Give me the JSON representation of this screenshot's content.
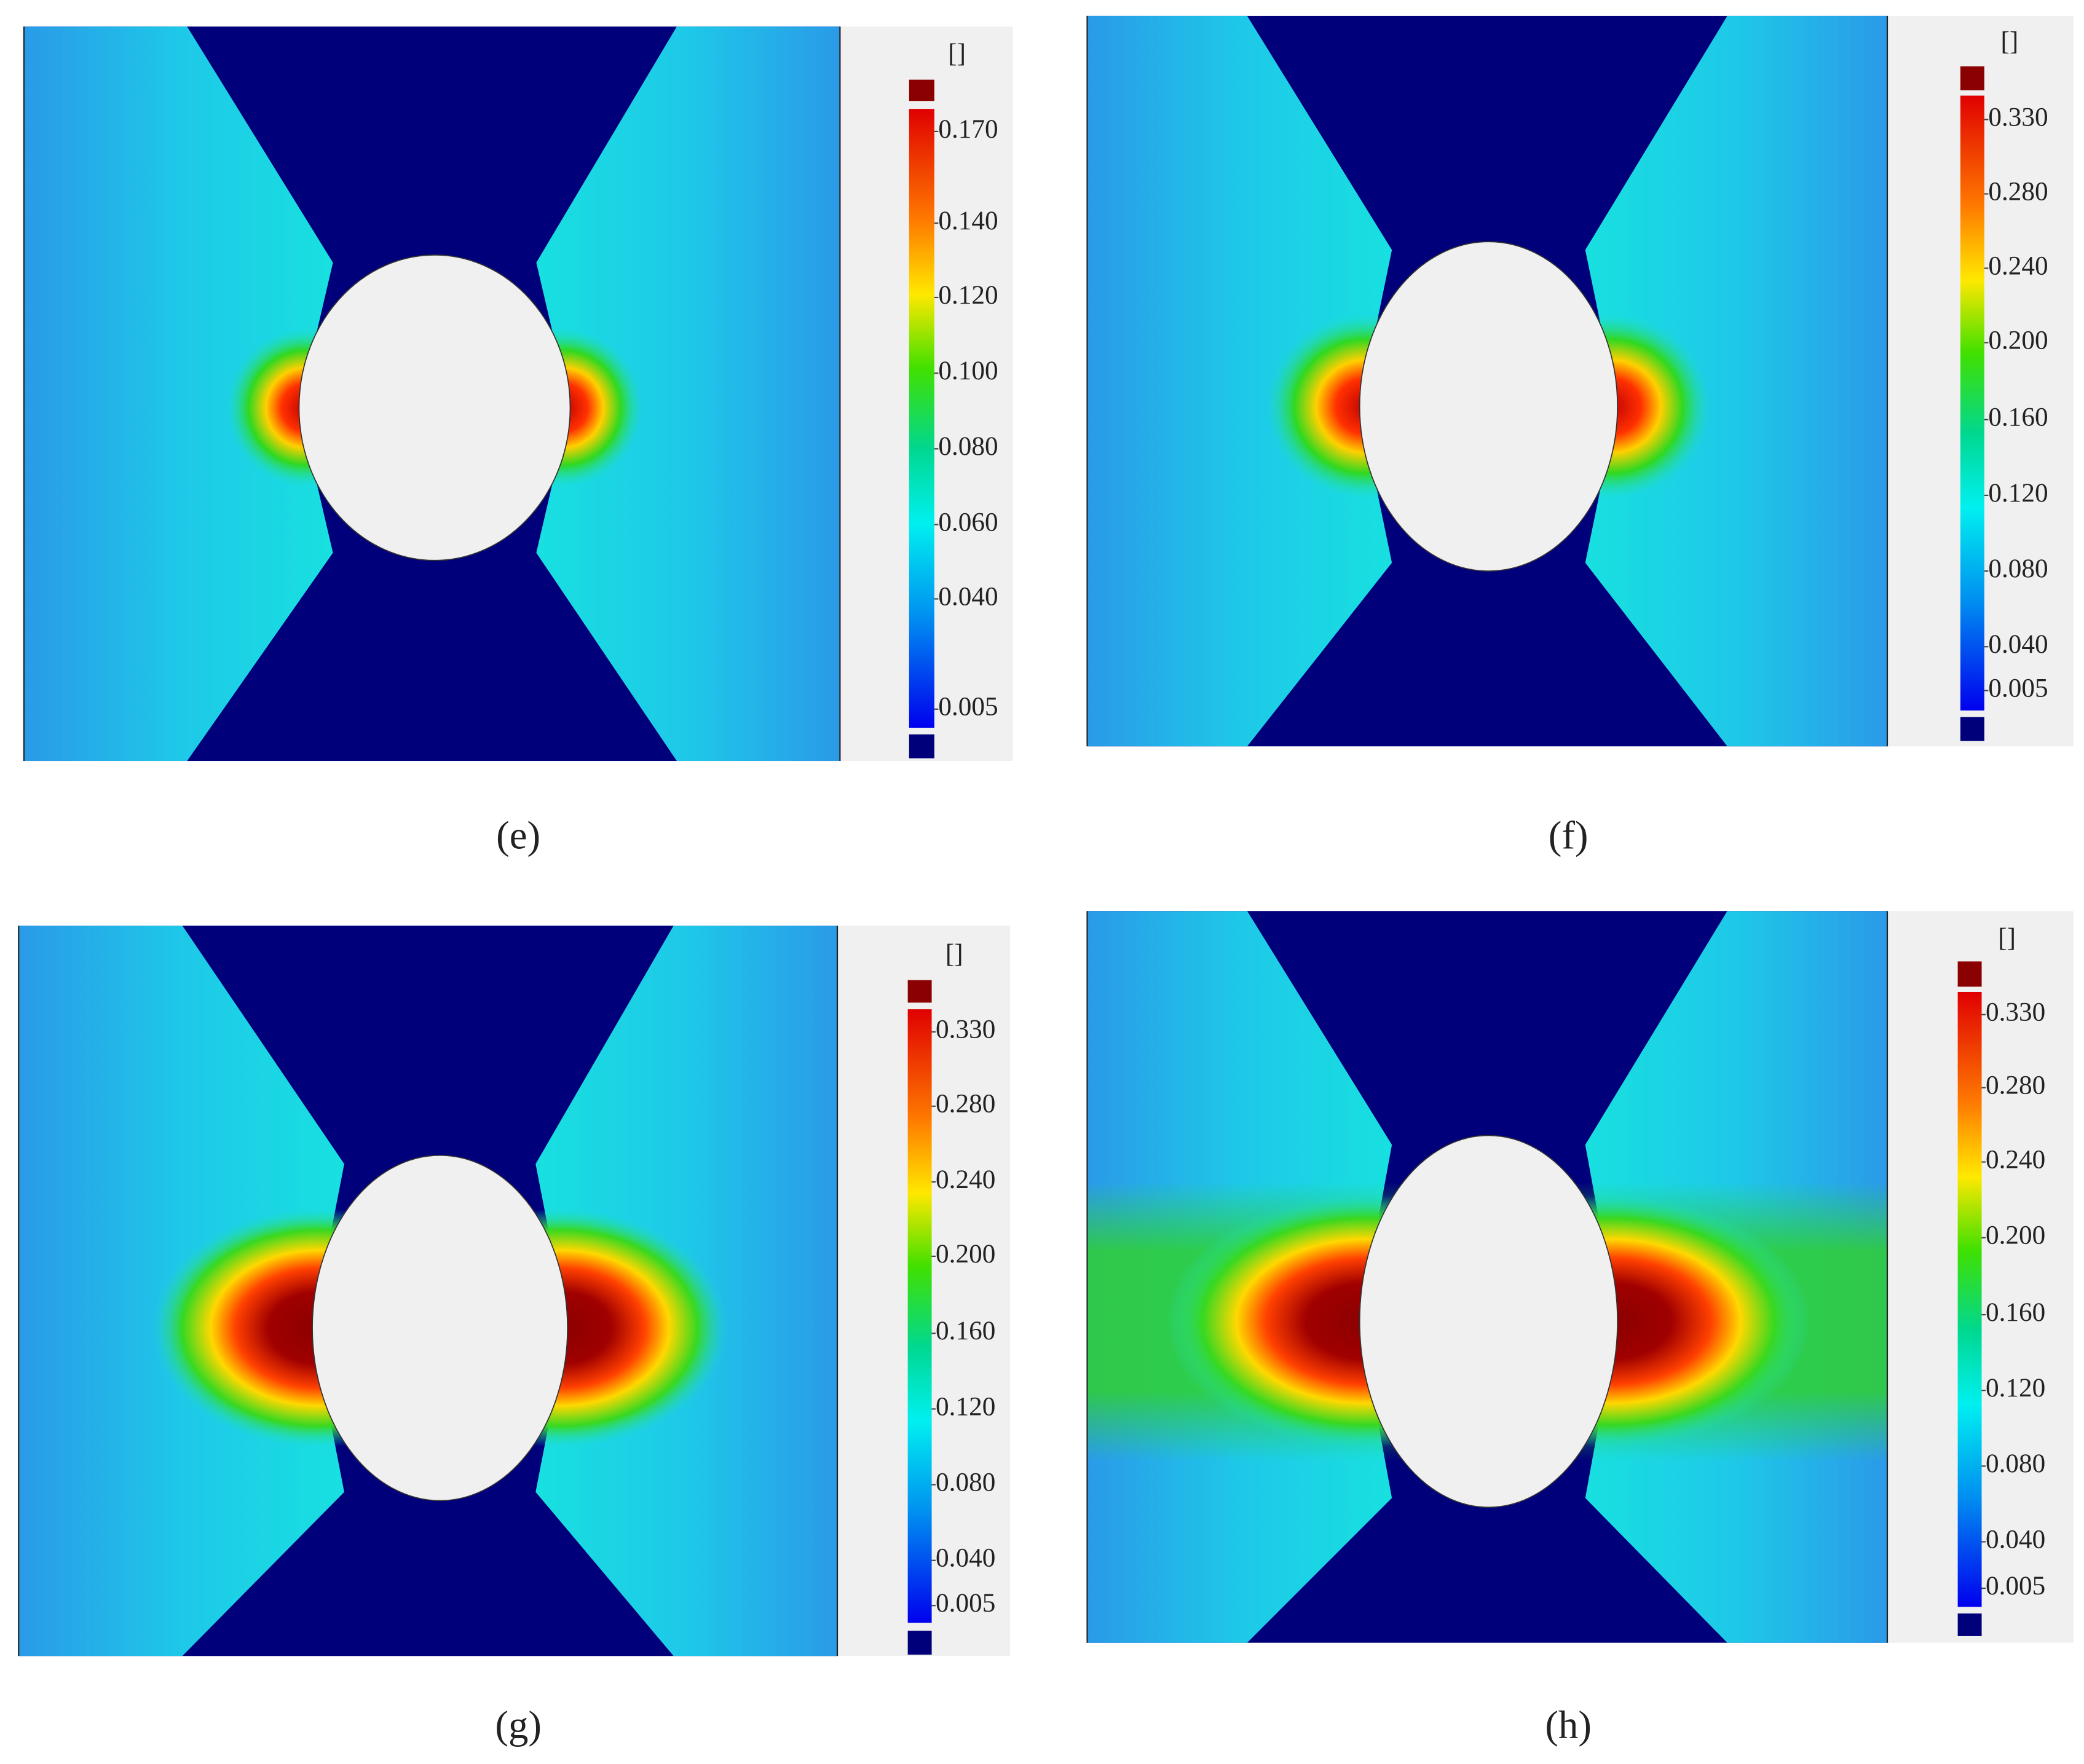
{
  "panels": [
    {
      "label": "(e)",
      "colorbar": {
        "unit": "[]",
        "ticks": [
          "0.170",
          "0.140",
          "0.120",
          "0.100",
          "0.080",
          "0.060",
          "0.040",
          "0.005"
        ]
      }
    },
    {
      "label": "(f)",
      "colorbar": {
        "unit": "[]",
        "ticks": [
          "0.330",
          "0.280",
          "0.240",
          "0.200",
          "0.160",
          "0.120",
          "0.080",
          "0.040",
          "0.005"
        ]
      }
    },
    {
      "label": "(g)",
      "colorbar": {
        "unit": "[]",
        "ticks": [
          "0.330",
          "0.280",
          "0.240",
          "0.200",
          "0.160",
          "0.120",
          "0.080",
          "0.040",
          "0.005"
        ]
      }
    },
    {
      "label": "(h)",
      "colorbar": {
        "unit": "[]",
        "ticks": [
          "0.330",
          "0.280",
          "0.240",
          "0.200",
          "0.160",
          "0.120",
          "0.080",
          "0.040",
          "0.005"
        ]
      }
    }
  ]
}
